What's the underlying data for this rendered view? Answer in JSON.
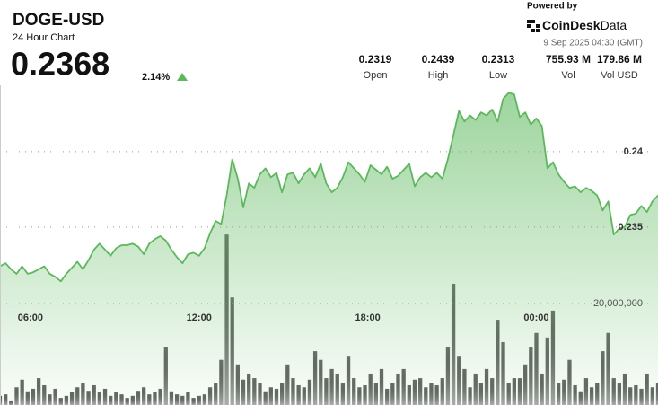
{
  "header": {
    "symbol": "DOGE-USD",
    "subtitle": "24 Hour Chart",
    "price": "0.2368",
    "change": "2.14%",
    "powered_by": "Powered by",
    "brand": "CoinDesk",
    "brand_suffix": "Data",
    "timestamp": "9 Sep 2025 04:30 (GMT)"
  },
  "stats": [
    {
      "value": "0.2319",
      "label": "Open"
    },
    {
      "value": "0.2439",
      "label": "High"
    },
    {
      "value": "0.2313",
      "label": "Low"
    },
    {
      "value": "755.93 M",
      "label": "Vol"
    },
    {
      "value": "179.86 M",
      "label": "Vol USD"
    }
  ],
  "chart_data": {
    "type": "line",
    "xlim": [
      0,
      119
    ],
    "xticks": [
      {
        "value": 5.5,
        "label": "06:00"
      },
      {
        "value": 36,
        "label": "12:00"
      },
      {
        "value": 66.5,
        "label": "18:00"
      },
      {
        "value": 97,
        "label": "00:00"
      }
    ],
    "ylim": [
      0.2232,
      0.2444
    ],
    "yticks": [
      0.235,
      0.24
    ],
    "y2lim": [
      0,
      63000000
    ],
    "y2ticks": [
      {
        "value": 20000000,
        "label": "20,000,000"
      }
    ],
    "grid": true,
    "series": [
      {
        "color": "#5cb85c",
        "values": [
          0.2324,
          0.2326,
          0.2322,
          0.2319,
          0.2324,
          0.2319,
          0.232,
          0.2322,
          0.2324,
          0.2319,
          0.2317,
          0.2314,
          0.2319,
          0.2323,
          0.2327,
          0.2322,
          0.2328,
          0.2335,
          0.2339,
          0.2335,
          0.2331,
          0.2336,
          0.2338,
          0.2338,
          0.2339,
          0.2337,
          0.2332,
          0.2339,
          0.2342,
          0.2344,
          0.2341,
          0.2335,
          0.233,
          0.2326,
          0.2332,
          0.2333,
          0.2331,
          0.2336,
          0.2346,
          0.2354,
          0.2352,
          0.2371,
          0.2395,
          0.2382,
          0.2363,
          0.2379,
          0.2376,
          0.2385,
          0.2389,
          0.2383,
          0.2386,
          0.2373,
          0.2385,
          0.2386,
          0.2379,
          0.2385,
          0.2389,
          0.2383,
          0.2392,
          0.2379,
          0.2373,
          0.2376,
          0.2383,
          0.2393,
          0.2389,
          0.2385,
          0.238,
          0.2391,
          0.2388,
          0.2385,
          0.239,
          0.2382,
          0.2384,
          0.2388,
          0.2392,
          0.2377,
          0.2383,
          0.2386,
          0.2383,
          0.2386,
          0.2382,
          0.2395,
          0.2411,
          0.2427,
          0.242,
          0.2424,
          0.2421,
          0.2426,
          0.2424,
          0.2428,
          0.242,
          0.2435,
          0.2439,
          0.2438,
          0.2423,
          0.2426,
          0.2418,
          0.2422,
          0.2417,
          0.2389,
          0.2393,
          0.2385,
          0.238,
          0.2376,
          0.2377,
          0.2373,
          0.2376,
          0.2374,
          0.2371,
          0.2361,
          0.2367,
          0.2345,
          0.2349,
          0.235,
          0.2358,
          0.2359,
          0.2364,
          0.236,
          0.2367,
          0.2371
        ]
      },
      {
        "type": "bar",
        "axis": "y2",
        "color": "#4d4d4d",
        "values": [
          1800000,
          2100000,
          900000,
          3500000,
          5000000,
          2700000,
          3200000,
          5300000,
          3900000,
          2100000,
          3200000,
          1400000,
          1800000,
          2500000,
          3500000,
          4400000,
          2800000,
          3900000,
          2500000,
          3200000,
          1800000,
          2500000,
          2100000,
          1400000,
          1800000,
          2800000,
          3500000,
          2100000,
          2500000,
          3200000,
          11500000,
          2700000,
          2100000,
          1800000,
          2500000,
          1400000,
          1800000,
          2100000,
          3500000,
          4400000,
          8900000,
          33600000,
          21200000,
          8000000,
          5000000,
          6200000,
          5300000,
          4400000,
          2700000,
          3500000,
          3200000,
          4400000,
          8000000,
          5300000,
          3900000,
          3500000,
          5000000,
          10600000,
          8900000,
          5300000,
          7100000,
          6200000,
          4400000,
          9700000,
          5300000,
          3500000,
          3900000,
          6200000,
          4400000,
          7100000,
          3200000,
          4400000,
          6200000,
          7100000,
          3900000,
          5000000,
          5300000,
          3500000,
          4400000,
          3900000,
          5300000,
          11500000,
          23900000,
          9700000,
          7100000,
          3500000,
          6200000,
          4400000,
          7100000,
          5300000,
          16800000,
          12400000,
          4400000,
          5300000,
          5300000,
          8000000,
          11500000,
          14200000,
          6200000,
          13300000,
          18600000,
          4400000,
          5000000,
          8900000,
          3900000,
          2700000,
          5300000,
          3500000,
          4400000,
          10600000,
          14200000,
          5300000,
          4400000,
          6200000,
          3500000,
          3900000,
          3200000,
          6200000,
          3500000,
          4400000
        ]
      }
    ]
  }
}
